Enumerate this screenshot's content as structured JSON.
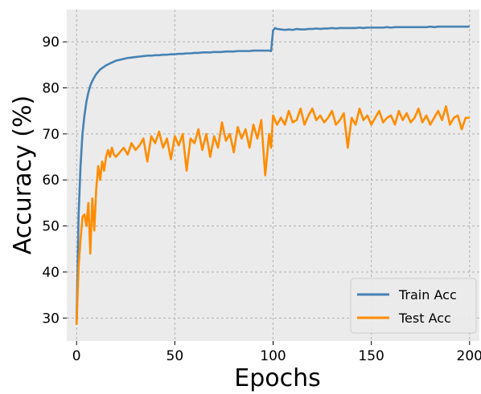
{
  "chart_data": {
    "type": "line",
    "title": "",
    "xlabel": "Epochs",
    "ylabel": "Accuracy (%)",
    "xlim": [
      -5,
      205
    ],
    "ylim": [
      25,
      97
    ],
    "x_ticks": [
      0,
      50,
      100,
      150,
      200
    ],
    "y_ticks": [
      30,
      40,
      50,
      60,
      70,
      80,
      90
    ],
    "grid": true,
    "legend_position": "bottom-right",
    "colors": {
      "background": "#ebebeb",
      "grid": "#b0b0b0",
      "train": "#4682b4",
      "test": "#ff8c00"
    },
    "x": [
      0,
      1,
      2,
      3,
      4,
      5,
      6,
      7,
      8,
      9,
      10,
      11,
      12,
      13,
      14,
      15,
      16,
      17,
      18,
      19,
      20,
      22,
      24,
      26,
      28,
      30,
      32,
      34,
      36,
      38,
      40,
      42,
      44,
      46,
      48,
      50,
      52,
      54,
      56,
      58,
      60,
      62,
      64,
      66,
      68,
      70,
      72,
      74,
      76,
      78,
      80,
      82,
      84,
      86,
      88,
      90,
      92,
      94,
      96,
      98,
      99,
      100,
      101,
      102,
      104,
      106,
      108,
      110,
      112,
      114,
      116,
      118,
      120,
      122,
      124,
      126,
      128,
      130,
      132,
      134,
      136,
      138,
      140,
      142,
      144,
      146,
      148,
      150,
      152,
      154,
      156,
      158,
      160,
      162,
      164,
      166,
      168,
      170,
      172,
      174,
      176,
      178,
      180,
      182,
      184,
      186,
      188,
      190,
      192,
      194,
      196,
      198,
      200
    ],
    "series": [
      {
        "name": "Train Acc",
        "values": [
          29,
          52,
          63,
          70,
          74,
          77,
          79,
          80.5,
          81.5,
          82.3,
          83,
          83.5,
          84,
          84.3,
          84.6,
          84.9,
          85.1,
          85.3,
          85.5,
          85.7,
          85.9,
          86.1,
          86.3,
          86.5,
          86.6,
          86.7,
          86.8,
          86.9,
          87,
          87,
          87.1,
          87.1,
          87.2,
          87.2,
          87.3,
          87.3,
          87.4,
          87.4,
          87.5,
          87.5,
          87.6,
          87.6,
          87.7,
          87.7,
          87.7,
          87.8,
          87.8,
          87.8,
          87.9,
          87.9,
          87.9,
          88,
          88,
          88,
          88,
          88.1,
          88.1,
          88.1,
          88.1,
          88.1,
          88,
          92.5,
          93,
          92.8,
          92.7,
          92.6,
          92.7,
          92.6,
          92.8,
          92.7,
          92.7,
          92.8,
          92.8,
          92.9,
          92.8,
          92.9,
          92.9,
          93,
          92.9,
          93,
          93,
          93,
          93,
          93,
          93.1,
          93,
          93.1,
          93.1,
          93.1,
          93.1,
          93.1,
          93.2,
          93.1,
          93.2,
          93.2,
          93.2,
          93.2,
          93.2,
          93.2,
          93.2,
          93.2,
          93.2,
          93.3,
          93.2,
          93.3,
          93.3,
          93.3,
          93.3,
          93.3,
          93.3,
          93.3,
          93.3,
          93.3
        ]
      },
      {
        "name": "Test Acc",
        "values": [
          28.5,
          41,
          47,
          52,
          52.5,
          50,
          55,
          44,
          56,
          49,
          58,
          63,
          60,
          64,
          62,
          65,
          66.5,
          65,
          67,
          65.5,
          65,
          66,
          67,
          65.5,
          68,
          66.5,
          67.5,
          69,
          64,
          69.5,
          68,
          70.5,
          67,
          69,
          64.5,
          69.5,
          67.5,
          70,
          62,
          69,
          68,
          71,
          66.5,
          70,
          65,
          69.5,
          67,
          72.5,
          68.5,
          70,
          66,
          71.5,
          69,
          71,
          67,
          72,
          69,
          73,
          61,
          70,
          67,
          74,
          73,
          72,
          73.5,
          72,
          75,
          72.5,
          73,
          75.5,
          72,
          74,
          75.5,
          73,
          74,
          72.5,
          73.5,
          75,
          72,
          73,
          74.5,
          67,
          73.5,
          72,
          75.5,
          73,
          74,
          72,
          73.5,
          75,
          72.5,
          73.5,
          74,
          72,
          75,
          73,
          74.5,
          72.5,
          73.5,
          75.5,
          72.5,
          74,
          72,
          73.5,
          75,
          73,
          76,
          72,
          73.5,
          74,
          71,
          73.5,
          73.5
        ]
      }
    ]
  }
}
